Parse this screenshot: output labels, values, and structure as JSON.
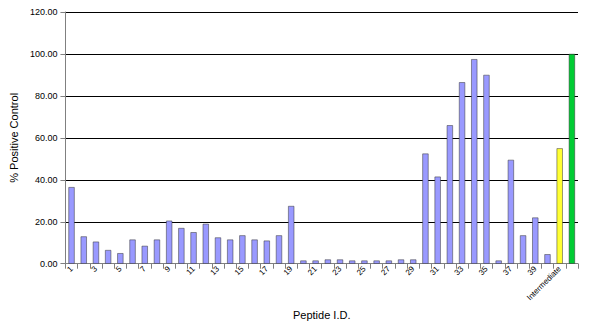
{
  "chart_data": {
    "type": "bar",
    "x_label": "Peptide I.D.",
    "y_label": "% Positive Control",
    "categories": [
      "1",
      null,
      "3",
      null,
      "5",
      null,
      "7",
      null,
      "9",
      null,
      "11",
      null,
      "13",
      null,
      "15",
      null,
      "17",
      null,
      "19",
      null,
      "21",
      null,
      "23",
      null,
      "25",
      null,
      "27",
      null,
      "29",
      null,
      "31",
      null,
      "33",
      null,
      "35",
      null,
      "37",
      null,
      "39",
      null,
      "Intermediate",
      null
    ],
    "values": [
      36.5,
      13,
      10.5,
      6.5,
      5,
      11.5,
      8.5,
      11.5,
      20.5,
      17,
      15,
      19,
      12.5,
      11.5,
      13.5,
      11.5,
      11,
      13.5,
      27.5,
      1.5,
      1.5,
      2,
      2,
      1.5,
      1.5,
      1.5,
      1.5,
      2,
      2,
      52.5,
      41.5,
      66,
      86.5,
      97.5,
      90,
      1.5,
      49.5,
      13.5,
      22,
      4.5,
      55,
      100
    ],
    "colors": [
      "#9999ff",
      "#9999ff",
      "#9999ff",
      "#9999ff",
      "#9999ff",
      "#9999ff",
      "#9999ff",
      "#9999ff",
      "#9999ff",
      "#9999ff",
      "#9999ff",
      "#9999ff",
      "#9999ff",
      "#9999ff",
      "#9999ff",
      "#9999ff",
      "#9999ff",
      "#9999ff",
      "#9999ff",
      "#9999ff",
      "#9999ff",
      "#9999ff",
      "#9999ff",
      "#9999ff",
      "#9999ff",
      "#9999ff",
      "#9999ff",
      "#9999ff",
      "#9999ff",
      "#9999ff",
      "#9999ff",
      "#9999ff",
      "#9999ff",
      "#9999ff",
      "#9999ff",
      "#9999ff",
      "#9999ff",
      "#9999ff",
      "#9999ff",
      "#9999ff",
      "#ffff33",
      "#00cc33"
    ],
    "ylim": [
      0,
      120
    ],
    "yticks": [
      {
        "value": 0,
        "label": "0.00"
      },
      {
        "value": 20,
        "label": "20.00"
      },
      {
        "value": 40,
        "label": "40.00"
      },
      {
        "value": 60,
        "label": "60.00"
      },
      {
        "value": 80,
        "label": "80.00"
      },
      {
        "value": 100,
        "label": "100.00"
      },
      {
        "value": 120,
        "label": "120.00"
      }
    ],
    "grid": true
  }
}
